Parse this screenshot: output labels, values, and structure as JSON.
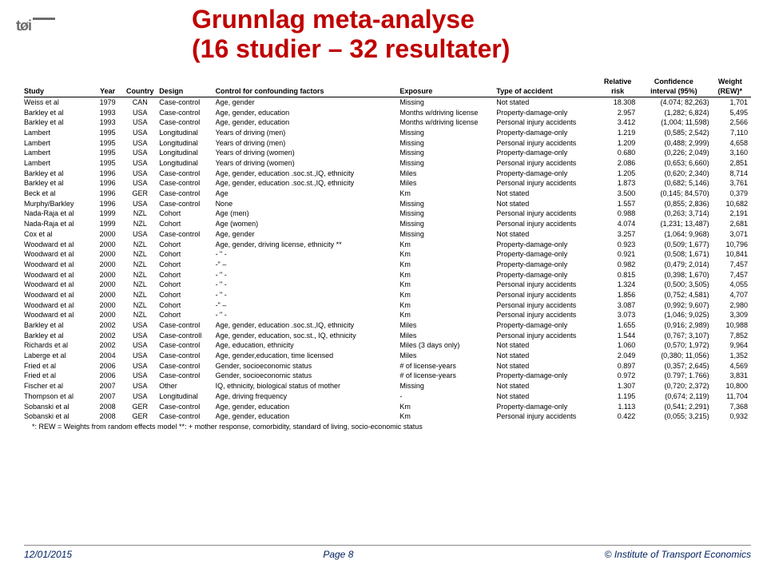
{
  "title_line1": "Grunnlag meta-analyse",
  "title_line2": "(16 studier – 32 resultater)",
  "logo_text": "tøi",
  "headers": {
    "study": "Study",
    "year": "Year",
    "country": "Country",
    "design": "Design",
    "control": "Control for confounding factors",
    "exposure": "Exposure",
    "type": "Type of accident",
    "rr": "Relative risk",
    "ci": "Confidence interval (95%)",
    "weight": "Weight (REW)*"
  },
  "rows": [
    [
      "Weiss et al",
      "1979",
      "CAN",
      "Case-control",
      "Age, gender",
      "Missing",
      "Not stated",
      "18.308",
      "(4.074; 82,263)",
      "1,701"
    ],
    [
      "Barkley et al",
      "1993",
      "USA",
      "Case-control",
      "Age, gender, education",
      "Months w/driving license",
      "Property-damage-only",
      "2.957",
      "(1,282; 6,824)",
      "5,495"
    ],
    [
      "Barkley et al",
      "1993",
      "USA",
      "Case-control",
      "Age, gender, education",
      "Months w/driving license",
      "Personal injury accidents",
      "3.412",
      "(1,004; 11,598)",
      "2,566"
    ],
    [
      "Lambert",
      "1995",
      "USA",
      "Longitudinal",
      "Years of driving (men)",
      "Missing",
      "Property-damage-only",
      "1.219",
      "(0,585; 2,542)",
      "7,110"
    ],
    [
      "Lambert",
      "1995",
      "USA",
      "Longitudinal",
      "Years of driving (men)",
      "Missing",
      "Personal injury accidents",
      "1.209",
      "(0,488; 2,999)",
      "4,658"
    ],
    [
      "Lambert",
      "1995",
      "USA",
      "Longitudinal",
      "Years of driving (women)",
      "Missing",
      "Property-damage-only",
      "0.680",
      "(0,226; 2,049)",
      "3,160"
    ],
    [
      "Lambert",
      "1995",
      "USA",
      "Longitudinal",
      "Years of driving (women)",
      "Missing",
      "Personal injury accidents",
      "2.086",
      "(0,653; 6,660)",
      "2,851"
    ],
    [
      "Barkley et al",
      "1996",
      "USA",
      "Case-control",
      "Age, gender, education .soc.st.,IQ, ethnicity",
      "Miles",
      "Property-damage-only",
      "1.205",
      "(0,620; 2,340)",
      "8,714"
    ],
    [
      "Barkley et al",
      "1996",
      "USA",
      "Case-control",
      "Age, gender, education .soc.st.,IQ, ethnicity",
      "Miles",
      "Personal injury accidents",
      "1.873",
      "(0,682; 5,146)",
      "3,761"
    ],
    [
      "Beck et al",
      "1996",
      "GER",
      "Case-control",
      "Age",
      "Km",
      "Not stated",
      "3.500",
      "(0,145; 84,570)",
      "0,379"
    ],
    [
      "Murphy/Barkley",
      "1996",
      "USA",
      "Case-control",
      "None",
      "Missing",
      "Not stated",
      "1.557",
      "(0,855; 2,836)",
      "10,682"
    ],
    [
      "Nada-Raja et al",
      "1999",
      "NZL",
      "Cohort",
      "Age (men)",
      "Missing",
      "Personal injury accidents",
      "0.988",
      "(0,263; 3,714)",
      "2,191"
    ],
    [
      "Nada-Raja et al",
      "1999",
      "NZL",
      "Cohort",
      "Age (women)",
      "Missing",
      "Personal injury accidents",
      "4.074",
      "(1,231; 13,487)",
      "2,681"
    ],
    [
      "Cox et al",
      "2000",
      "USA",
      "Case-control",
      "Age, gender",
      "Missing",
      "Not stated",
      "3.257",
      "(1,064; 9,968)",
      "3,071"
    ],
    [
      "Woodward et al",
      "2000",
      "NZL",
      "Cohort",
      "Age, gender, driving license, ethnicity **",
      "Km",
      "Property-damage-only",
      "0.923",
      "(0,509; 1,677)",
      "10,796"
    ],
    [
      "Woodward et al",
      "2000",
      "NZL",
      "Cohort",
      "- \" -",
      "Km",
      "Property-damage-only",
      "0.921",
      "(0,508; 1,671)",
      "10,841"
    ],
    [
      "Woodward et al",
      "2000",
      "NZL",
      "Cohort",
      "-\" –",
      "Km",
      "Property-damage-only",
      "0.982",
      "(0,479; 2,014)",
      "7,457"
    ],
    [
      "Woodward et al",
      "2000",
      "NZL",
      "Cohort",
      "- \" -",
      "Km",
      "Property-damage-only",
      "0.815",
      "(0,398; 1,670)",
      "7,457"
    ],
    [
      "Woodward et al",
      "2000",
      "NZL",
      "Cohort",
      "- \" -",
      "Km",
      "Personal injury accidents",
      "1.324",
      "(0,500; 3,505)",
      "4,055"
    ],
    [
      "Woodward et al",
      "2000",
      "NZL",
      "Cohort",
      "- \" -",
      "Km",
      "Personal injury accidents",
      "1.856",
      "(0,752; 4,581)",
      "4,707"
    ],
    [
      "Woodward et al",
      "2000",
      "NZL",
      "Cohort",
      "-\" –",
      "Km",
      "Personal injury accidents",
      "3.087",
      "(0,992; 9,607)",
      "2,980"
    ],
    [
      "Woodward et al",
      "2000",
      "NZL",
      "Cohort",
      "- \" -",
      "Km",
      "Personal injury accidents",
      "3.073",
      "(1,046; 9,025)",
      "3,309"
    ],
    [
      "Barkley et al",
      "2002",
      "USA",
      "Case-control",
      "Age, gender, education .soc.st.,IQ, ethnicity",
      "Miles",
      "Property-damage-only",
      "1.655",
      "(0,916; 2,989)",
      "10,988"
    ],
    [
      "Barkley et al",
      "2002",
      "USA",
      "Case-controll",
      "Age, gender, education, soc.st., IQ, ethnicity",
      "Miles",
      "Personal injury accidents",
      "1.544",
      "(0,767; 3,107)",
      "7,852"
    ],
    [
      "Richards et al",
      "2002",
      "USA",
      "Case-control",
      "Age, education, ethnicity",
      "Miles (3 days only)",
      "Not stated",
      "1.060",
      "(0,570; 1,972)",
      "9,964"
    ],
    [
      "Laberge et al",
      "2004",
      "USA",
      "Case-control",
      "Age, gender,education, time licensed",
      "Miles",
      "Not stated",
      "2.049",
      "(0,380; 11,056)",
      "1,352"
    ],
    [
      "Fried et al",
      "2006",
      "USA",
      "Case-control",
      "Gender, socioeconomic status",
      "# of license-years",
      "Not stated",
      "0.897",
      "(0,357; 2,645)",
      "4,569"
    ],
    [
      "Fried et al",
      "2006",
      "USA",
      "Case-control",
      "Gender, socioeconomic status",
      "# of license-years",
      "Property-damage-only",
      "0.972",
      "(0.797; 1.766)",
      "3,831"
    ],
    [
      "Fischer et al",
      "2007",
      "USA",
      "Other",
      "IQ, ethnicity, biological status of mother",
      "Missing",
      "Not stated",
      "1.307",
      "(0,720; 2,372)",
      "10,800"
    ],
    [
      "Thompson et al",
      "2007",
      "USA",
      "Longitudinal",
      "Age, driving frequency",
      "-",
      "Not stated",
      "1.195",
      "(0,674; 2,119)",
      "11,704"
    ],
    [
      "Sobanski et al",
      "2008",
      "GER",
      "Case-control",
      "Age, gender, education",
      "Km",
      "Property-damage-only",
      "1.113",
      "(0,541; 2,291)",
      "7,368"
    ],
    [
      "Sobanski et al",
      "2008",
      "GER",
      "Case-control",
      "Age, gender, education",
      "Km",
      "Personal injury accidents",
      "0.422",
      "(0,055; 3,215)",
      "0,932"
    ]
  ],
  "footnote": "*: REW = Weights from random effects model    **: + mother response, comorbidity, standard of living, socio-economic status",
  "footer": {
    "date": "12/01/2015",
    "page": "Page 8",
    "org": "© Institute of Transport Economics"
  },
  "colwidths": [
    "80px",
    "34px",
    "40px",
    "64px",
    "210px",
    "110px",
    "118px",
    "44px",
    "84px",
    "44px"
  ]
}
